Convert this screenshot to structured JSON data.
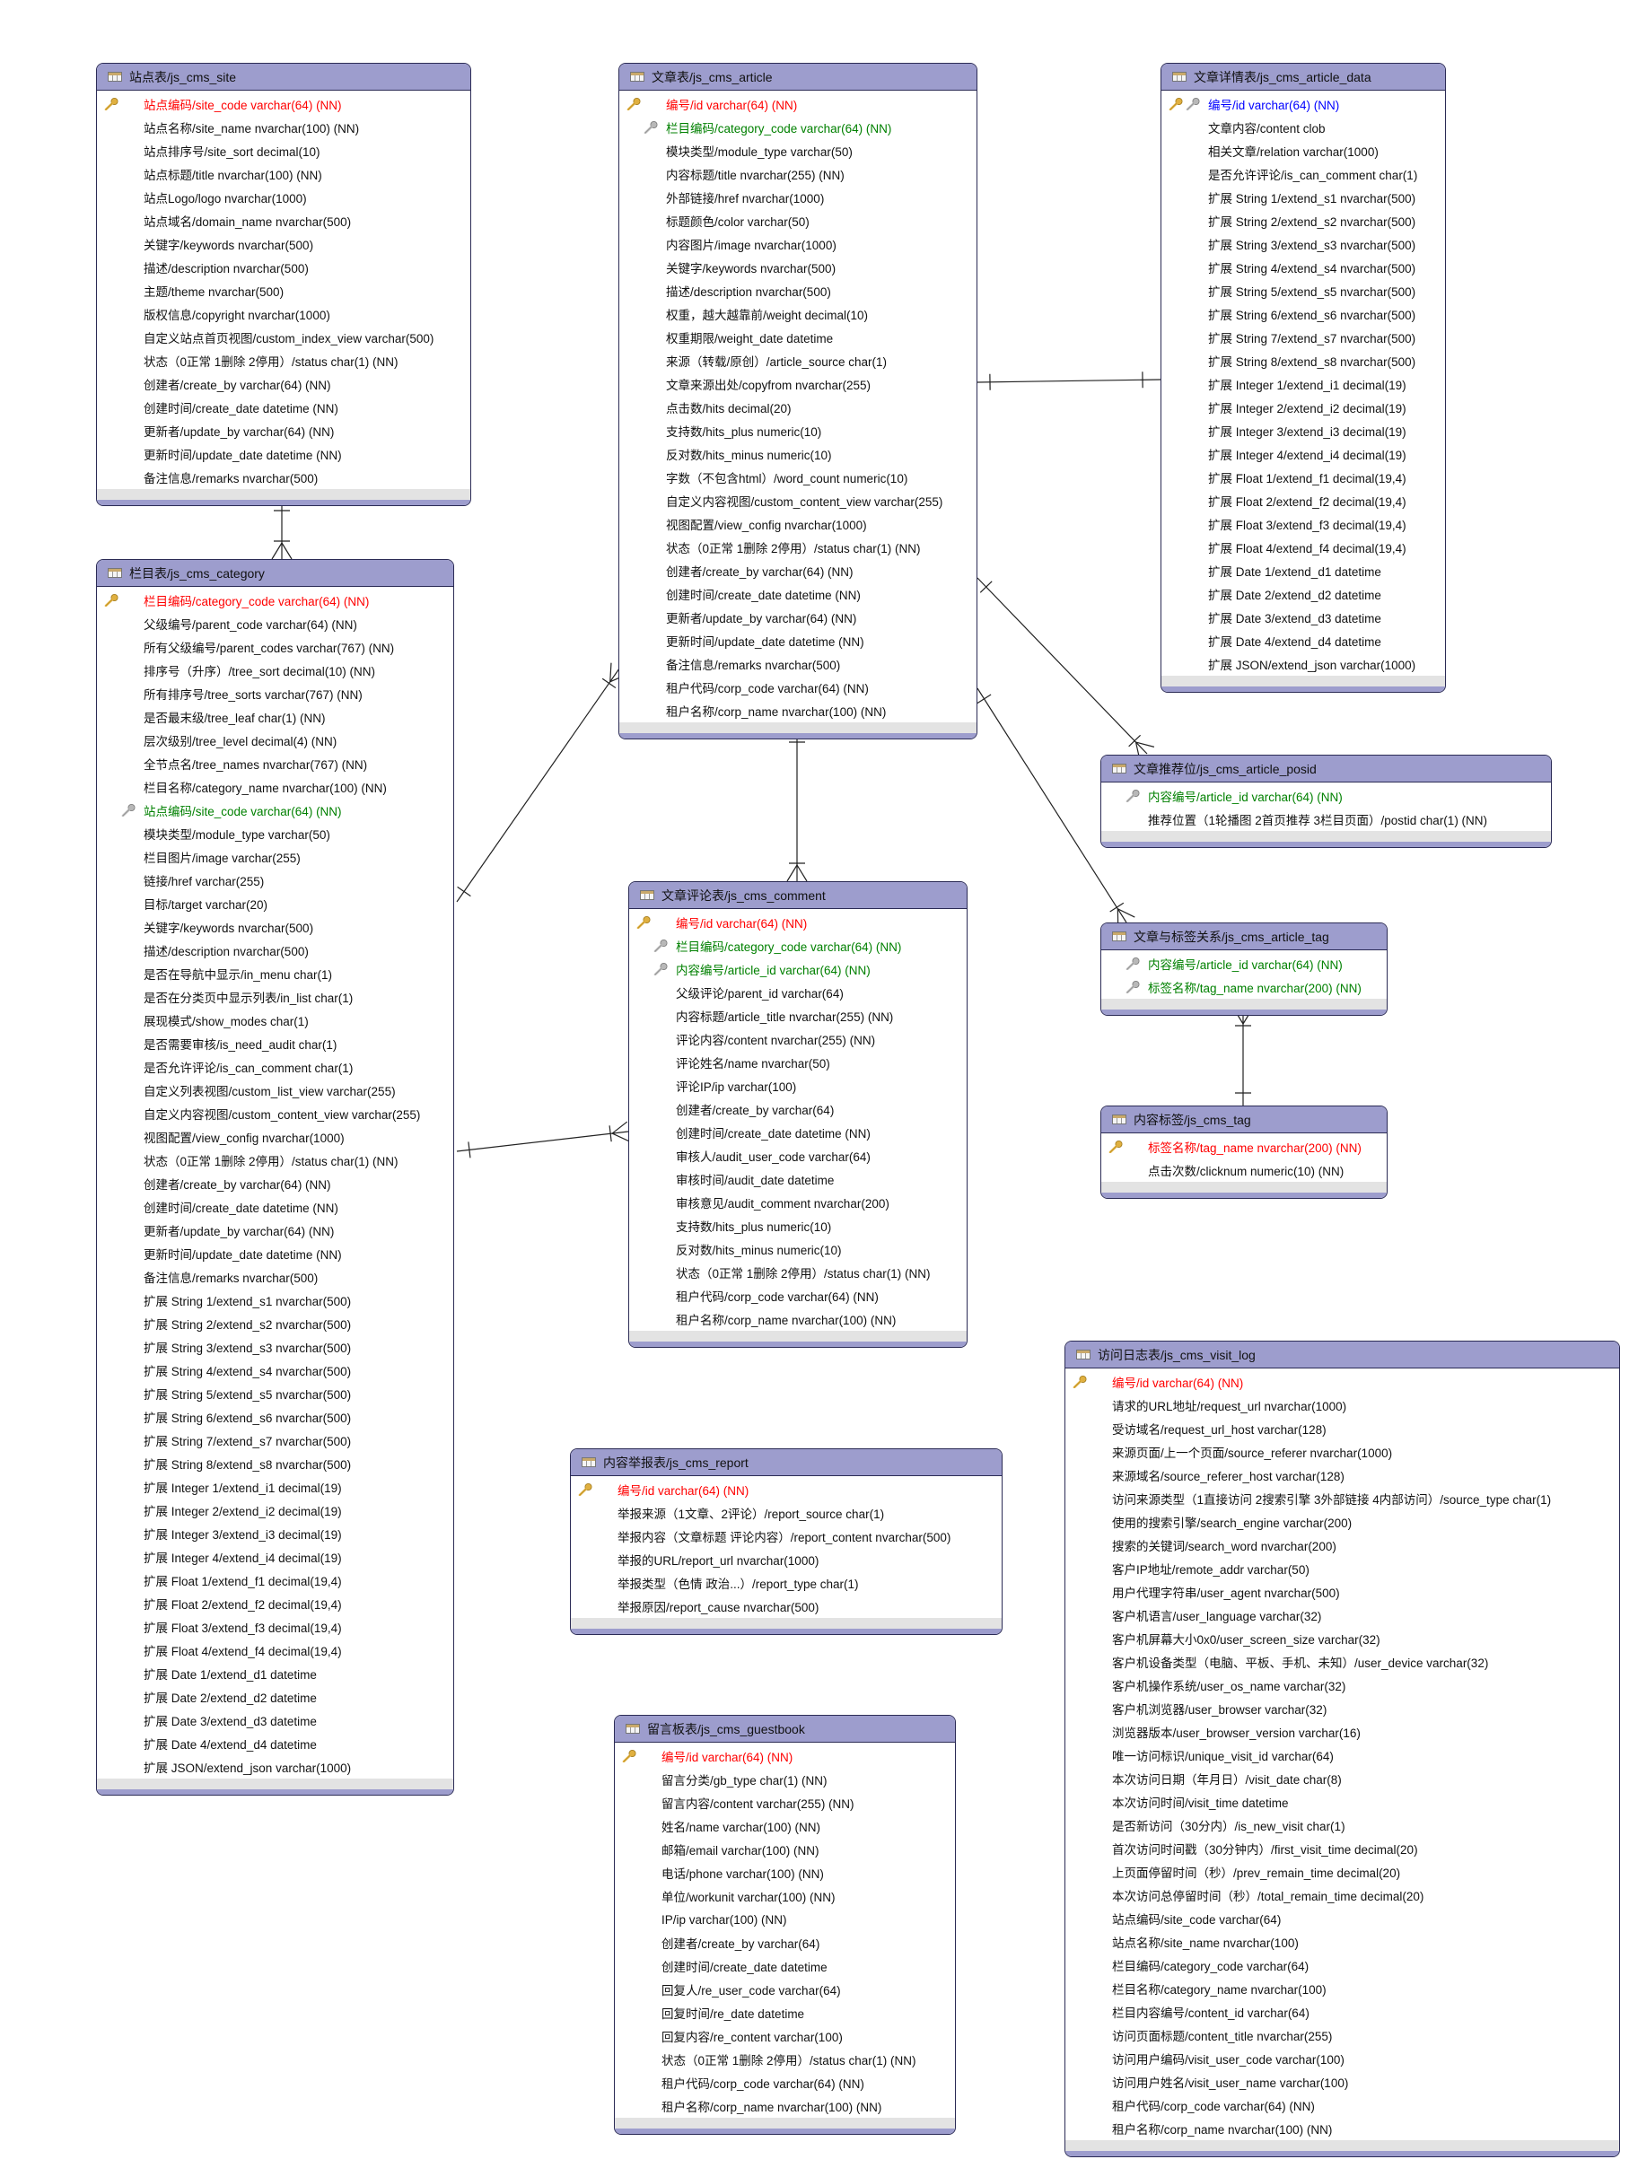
{
  "colors": {
    "header": "#9d9dcd",
    "primary_key": "#ff0000",
    "foreign_key": "#008000",
    "primary_foreign_key": "#0000ff",
    "text": "#111111"
  },
  "tables": [
    {
      "id": "site",
      "title": "站点表/js_cms_site",
      "fields": [
        {
          "text": "站点编码/site_code varchar(64) (NN)",
          "kind": "pk"
        },
        {
          "text": "站点名称/site_name nvarchar(100) (NN)"
        },
        {
          "text": "站点排序号/site_sort decimal(10)"
        },
        {
          "text": "站点标题/title nvarchar(100) (NN)"
        },
        {
          "text": "站点Logo/logo nvarchar(1000)"
        },
        {
          "text": "站点域名/domain_name nvarchar(500)"
        },
        {
          "text": "关键字/keywords nvarchar(500)"
        },
        {
          "text": "描述/description nvarchar(500)"
        },
        {
          "text": "主题/theme nvarchar(500)"
        },
        {
          "text": "版权信息/copyright nvarchar(1000)"
        },
        {
          "text": "自定义站点首页视图/custom_index_view varchar(500)"
        },
        {
          "text": "状态（0正常 1删除 2停用）/status char(1) (NN)"
        },
        {
          "text": "创建者/create_by varchar(64) (NN)"
        },
        {
          "text": "创建时间/create_date datetime (NN)"
        },
        {
          "text": "更新者/update_by varchar(64) (NN)"
        },
        {
          "text": "更新时间/update_date datetime (NN)"
        },
        {
          "text": "备注信息/remarks nvarchar(500)"
        }
      ]
    },
    {
      "id": "category",
      "title": "栏目表/js_cms_category",
      "fields": [
        {
          "text": "栏目编码/category_code varchar(64) (NN)",
          "kind": "pk"
        },
        {
          "text": "父级编号/parent_code varchar(64) (NN)"
        },
        {
          "text": "所有父级编号/parent_codes varchar(767) (NN)"
        },
        {
          "text": "排序号（升序）/tree_sort decimal(10) (NN)"
        },
        {
          "text": "所有排序号/tree_sorts varchar(767) (NN)"
        },
        {
          "text": "是否最末级/tree_leaf char(1) (NN)"
        },
        {
          "text": "层次级别/tree_level decimal(4) (NN)"
        },
        {
          "text": "全节点名/tree_names nvarchar(767) (NN)"
        },
        {
          "text": "栏目名称/category_name nvarchar(100) (NN)"
        },
        {
          "text": "站点编码/site_code varchar(64) (NN)",
          "kind": "fk"
        },
        {
          "text": "模块类型/module_type varchar(50)"
        },
        {
          "text": "栏目图片/image varchar(255)"
        },
        {
          "text": "链接/href varchar(255)"
        },
        {
          "text": "目标/target varchar(20)"
        },
        {
          "text": "关键字/keywords nvarchar(500)"
        },
        {
          "text": "描述/description nvarchar(500)"
        },
        {
          "text": "是否在导航中显示/in_menu char(1)"
        },
        {
          "text": "是否在分类页中显示列表/in_list char(1)"
        },
        {
          "text": "展现模式/show_modes char(1)"
        },
        {
          "text": "是否需要审核/is_need_audit char(1)"
        },
        {
          "text": "是否允许评论/is_can_comment char(1)"
        },
        {
          "text": "自定义列表视图/custom_list_view varchar(255)"
        },
        {
          "text": "自定义内容视图/custom_content_view varchar(255)"
        },
        {
          "text": "视图配置/view_config nvarchar(1000)"
        },
        {
          "text": "状态（0正常 1删除 2停用）/status char(1) (NN)"
        },
        {
          "text": "创建者/create_by varchar(64) (NN)"
        },
        {
          "text": "创建时间/create_date datetime (NN)"
        },
        {
          "text": "更新者/update_by varchar(64) (NN)"
        },
        {
          "text": "更新时间/update_date datetime (NN)"
        },
        {
          "text": "备注信息/remarks nvarchar(500)"
        },
        {
          "text": "扩展 String 1/extend_s1 nvarchar(500)"
        },
        {
          "text": "扩展 String 2/extend_s2 nvarchar(500)"
        },
        {
          "text": "扩展 String 3/extend_s3 nvarchar(500)"
        },
        {
          "text": "扩展 String 4/extend_s4 nvarchar(500)"
        },
        {
          "text": "扩展 String 5/extend_s5 nvarchar(500)"
        },
        {
          "text": "扩展 String 6/extend_s6 nvarchar(500)"
        },
        {
          "text": "扩展 String 7/extend_s7 nvarchar(500)"
        },
        {
          "text": "扩展 String 8/extend_s8 nvarchar(500)"
        },
        {
          "text": "扩展 Integer 1/extend_i1 decimal(19)"
        },
        {
          "text": "扩展 Integer 2/extend_i2 decimal(19)"
        },
        {
          "text": "扩展 Integer 3/extend_i3 decimal(19)"
        },
        {
          "text": "扩展 Integer 4/extend_i4 decimal(19)"
        },
        {
          "text": "扩展 Float 1/extend_f1 decimal(19,4)"
        },
        {
          "text": "扩展 Float 2/extend_f2 decimal(19,4)"
        },
        {
          "text": "扩展 Float 3/extend_f3 decimal(19,4)"
        },
        {
          "text": "扩展 Float 4/extend_f4 decimal(19,4)"
        },
        {
          "text": "扩展 Date 1/extend_d1 datetime"
        },
        {
          "text": "扩展 Date 2/extend_d2 datetime"
        },
        {
          "text": "扩展 Date 3/extend_d3 datetime"
        },
        {
          "text": "扩展 Date 4/extend_d4 datetime"
        },
        {
          "text": "扩展 JSON/extend_json varchar(1000)"
        }
      ]
    },
    {
      "id": "article",
      "title": "文章表/js_cms_article",
      "fields": [
        {
          "text": "编号/id varchar(64) (NN)",
          "kind": "pk"
        },
        {
          "text": "栏目编码/category_code varchar(64) (NN)",
          "kind": "fk"
        },
        {
          "text": "模块类型/module_type varchar(50)"
        },
        {
          "text": "内容标题/title nvarchar(255) (NN)"
        },
        {
          "text": "外部链接/href nvarchar(1000)"
        },
        {
          "text": "标题颜色/color varchar(50)"
        },
        {
          "text": "内容图片/image nvarchar(1000)"
        },
        {
          "text": "关键字/keywords nvarchar(500)"
        },
        {
          "text": "描述/description nvarchar(500)"
        },
        {
          "text": "权重，越大越靠前/weight decimal(10)"
        },
        {
          "text": "权重期限/weight_date datetime"
        },
        {
          "text": "来源（转载/原创）/article_source char(1)"
        },
        {
          "text": "文章来源出处/copyfrom nvarchar(255)"
        },
        {
          "text": "点击数/hits decimal(20)"
        },
        {
          "text": "支持数/hits_plus numeric(10)"
        },
        {
          "text": "反对数/hits_minus numeric(10)"
        },
        {
          "text": "字数（不包含html）/word_count numeric(10)"
        },
        {
          "text": "自定义内容视图/custom_content_view varchar(255)"
        },
        {
          "text": "视图配置/view_config nvarchar(1000)"
        },
        {
          "text": "状态（0正常 1删除 2停用）/status char(1) (NN)"
        },
        {
          "text": "创建者/create_by varchar(64) (NN)"
        },
        {
          "text": "创建时间/create_date datetime (NN)"
        },
        {
          "text": "更新者/update_by varchar(64) (NN)"
        },
        {
          "text": "更新时间/update_date datetime (NN)"
        },
        {
          "text": "备注信息/remarks nvarchar(500)"
        },
        {
          "text": "租户代码/corp_code varchar(64) (NN)"
        },
        {
          "text": "租户名称/corp_name nvarchar(100) (NN)"
        }
      ]
    },
    {
      "id": "article_data",
      "title": "文章详情表/js_cms_article_data",
      "fields": [
        {
          "text": "编号/id varchar(64) (NN)",
          "kind": "pkfk"
        },
        {
          "text": "文章内容/content clob"
        },
        {
          "text": "相关文章/relation varchar(1000)"
        },
        {
          "text": "是否允许评论/is_can_comment char(1)"
        },
        {
          "text": "扩展 String 1/extend_s1 nvarchar(500)"
        },
        {
          "text": "扩展 String 2/extend_s2 nvarchar(500)"
        },
        {
          "text": "扩展 String 3/extend_s3 nvarchar(500)"
        },
        {
          "text": "扩展 String 4/extend_s4 nvarchar(500)"
        },
        {
          "text": "扩展 String 5/extend_s5 nvarchar(500)"
        },
        {
          "text": "扩展 String 6/extend_s6 nvarchar(500)"
        },
        {
          "text": "扩展 String 7/extend_s7 nvarchar(500)"
        },
        {
          "text": "扩展 String 8/extend_s8 nvarchar(500)"
        },
        {
          "text": "扩展 Integer 1/extend_i1 decimal(19)"
        },
        {
          "text": "扩展 Integer 2/extend_i2 decimal(19)"
        },
        {
          "text": "扩展 Integer 3/extend_i3 decimal(19)"
        },
        {
          "text": "扩展 Integer 4/extend_i4 decimal(19)"
        },
        {
          "text": "扩展 Float 1/extend_f1 decimal(19,4)"
        },
        {
          "text": "扩展 Float 2/extend_f2 decimal(19,4)"
        },
        {
          "text": "扩展 Float 3/extend_f3 decimal(19,4)"
        },
        {
          "text": "扩展 Float 4/extend_f4 decimal(19,4)"
        },
        {
          "text": "扩展 Date 1/extend_d1 datetime"
        },
        {
          "text": "扩展 Date 2/extend_d2 datetime"
        },
        {
          "text": "扩展 Date 3/extend_d3 datetime"
        },
        {
          "text": "扩展 Date 4/extend_d4 datetime"
        },
        {
          "text": "扩展 JSON/extend_json varchar(1000)"
        }
      ]
    },
    {
      "id": "posid",
      "title": "文章推荐位/js_cms_article_posid",
      "fields": [
        {
          "text": "内容编号/article_id varchar(64) (NN)",
          "kind": "fk"
        },
        {
          "text": "推荐位置（1轮播图 2首页推荐 3栏目页面）/postid char(1) (NN)"
        }
      ]
    },
    {
      "id": "article_tag",
      "title": "文章与标签关系/js_cms_article_tag",
      "fields": [
        {
          "text": "内容编号/article_id varchar(64) (NN)",
          "kind": "fk"
        },
        {
          "text": "标签名称/tag_name nvarchar(200) (NN)",
          "kind": "fk"
        }
      ]
    },
    {
      "id": "tag",
      "title": "内容标签/js_cms_tag",
      "fields": [
        {
          "text": "标签名称/tag_name nvarchar(200) (NN)",
          "kind": "pk"
        },
        {
          "text": "点击次数/clicknum numeric(10) (NN)"
        }
      ]
    },
    {
      "id": "comment",
      "title": "文章评论表/js_cms_comment",
      "fields": [
        {
          "text": "编号/id varchar(64) (NN)",
          "kind": "pk"
        },
        {
          "text": "栏目编码/category_code varchar(64) (NN)",
          "kind": "fk"
        },
        {
          "text": "内容编号/article_id varchar(64) (NN)",
          "kind": "fk"
        },
        {
          "text": "父级评论/parent_id varchar(64)"
        },
        {
          "text": "内容标题/article_title nvarchar(255) (NN)"
        },
        {
          "text": "评论内容/content nvarchar(255) (NN)"
        },
        {
          "text": "评论姓名/name nvarchar(50)"
        },
        {
          "text": "评论IP/ip varchar(100)"
        },
        {
          "text": "创建者/create_by varchar(64)"
        },
        {
          "text": "创建时间/create_date datetime (NN)"
        },
        {
          "text": "审核人/audit_user_code varchar(64)"
        },
        {
          "text": "审核时间/audit_date datetime"
        },
        {
          "text": "审核意见/audit_comment nvarchar(200)"
        },
        {
          "text": "支持数/hits_plus numeric(10)"
        },
        {
          "text": "反对数/hits_minus numeric(10)"
        },
        {
          "text": "状态（0正常 1删除 2停用）/status char(1) (NN)"
        },
        {
          "text": "租户代码/corp_code varchar(64) (NN)"
        },
        {
          "text": "租户名称/corp_name nvarchar(100) (NN)"
        }
      ]
    },
    {
      "id": "report",
      "title": "内容举报表/js_cms_report",
      "fields": [
        {
          "text": "编号/id varchar(64) (NN)",
          "kind": "pk"
        },
        {
          "text": "举报来源（1文章、2评论）/report_source char(1)"
        },
        {
          "text": "举报内容（文章标题 评论内容）/report_content nvarchar(500)"
        },
        {
          "text": "举报的URL/report_url nvarchar(1000)"
        },
        {
          "text": "举报类型（色情 政治...）/report_type char(1)"
        },
        {
          "text": "举报原因/report_cause nvarchar(500)"
        }
      ]
    },
    {
      "id": "guestbook",
      "title": "留言板表/js_cms_guestbook",
      "fields": [
        {
          "text": "编号/id varchar(64) (NN)",
          "kind": "pk"
        },
        {
          "text": "留言分类/gb_type char(1) (NN)"
        },
        {
          "text": "留言内容/content varchar(255) (NN)"
        },
        {
          "text": "姓名/name varchar(100) (NN)"
        },
        {
          "text": "邮箱/email varchar(100) (NN)"
        },
        {
          "text": "电话/phone varchar(100) (NN)"
        },
        {
          "text": "单位/workunit varchar(100) (NN)"
        },
        {
          "text": "IP/ip varchar(100) (NN)"
        },
        {
          "text": "创建者/create_by varchar(64)"
        },
        {
          "text": "创建时间/create_date datetime"
        },
        {
          "text": "回复人/re_user_code varchar(64)"
        },
        {
          "text": "回复时间/re_date datetime"
        },
        {
          "text": "回复内容/re_content varchar(100)"
        },
        {
          "text": "状态（0正常 1删除 2停用）/status char(1) (NN)"
        },
        {
          "text": "租户代码/corp_code varchar(64) (NN)"
        },
        {
          "text": "租户名称/corp_name nvarchar(100) (NN)"
        }
      ]
    },
    {
      "id": "visit_log",
      "title": "访问日志表/js_cms_visit_log",
      "fields": [
        {
          "text": "编号/id varchar(64) (NN)",
          "kind": "pk"
        },
        {
          "text": "请求的URL地址/request_url nvarchar(1000)"
        },
        {
          "text": "受访域名/request_url_host varchar(128)"
        },
        {
          "text": "来源页面/上一个页面/source_referer nvarchar(1000)"
        },
        {
          "text": "来源域名/source_referer_host varchar(128)"
        },
        {
          "text": "访问来源类型（1直接访问 2搜索引擎 3外部链接 4内部访问）/source_type char(1)"
        },
        {
          "text": "使用的搜索引擎/search_engine varchar(200)"
        },
        {
          "text": "搜索的关键词/search_word nvarchar(200)"
        },
        {
          "text": "客户IP地址/remote_addr varchar(50)"
        },
        {
          "text": "用户代理字符串/user_agent nvarchar(500)"
        },
        {
          "text": "客户机语言/user_language varchar(32)"
        },
        {
          "text": "客户机屏幕大小0x0/user_screen_size varchar(32)"
        },
        {
          "text": "客户机设备类型（电脑、平板、手机、未知）/user_device varchar(32)"
        },
        {
          "text": "客户机操作系统/user_os_name varchar(32)"
        },
        {
          "text": "客户机浏览器/user_browser varchar(32)"
        },
        {
          "text": "浏览器版本/user_browser_version varchar(16)"
        },
        {
          "text": "唯一访问标识/unique_visit_id varchar(64)"
        },
        {
          "text": "本次访问日期（年月日）/visit_date char(8)"
        },
        {
          "text": "本次访问时间/visit_time datetime"
        },
        {
          "text": "是否新访问（30分内）/is_new_visit char(1)"
        },
        {
          "text": "首次访问时间戳（30分钟内）/first_visit_time decimal(20)"
        },
        {
          "text": "上页面停留时间（秒）/prev_remain_time decimal(20)"
        },
        {
          "text": "本次访问总停留时间（秒）/total_remain_time decimal(20)"
        },
        {
          "text": "站点编码/site_code varchar(64)"
        },
        {
          "text": "站点名称/site_name nvarchar(100)"
        },
        {
          "text": "栏目编码/category_code varchar(64)"
        },
        {
          "text": "栏目名称/category_name nvarchar(100)"
        },
        {
          "text": "栏目内容编号/content_id varchar(64)"
        },
        {
          "text": "访问页面标题/content_title nvarchar(255)"
        },
        {
          "text": "访问用户编码/visit_user_code varchar(100)"
        },
        {
          "text": "访问用户姓名/visit_user_name varchar(100)"
        },
        {
          "text": "租户代码/corp_code varchar(64) (NN)"
        },
        {
          "text": "租户名称/corp_name nvarchar(100) (NN)"
        }
      ]
    }
  ],
  "relationships": [
    {
      "from": "site",
      "to": "category",
      "type": "one-to-many"
    },
    {
      "from": "category",
      "to": "article",
      "type": "one-to-many"
    },
    {
      "from": "category",
      "to": "comment",
      "type": "one-to-many"
    },
    {
      "from": "article",
      "to": "comment",
      "type": "one-to-many"
    },
    {
      "from": "article",
      "to": "article_data",
      "type": "one-to-one"
    },
    {
      "from": "article",
      "to": "posid",
      "type": "one-to-many"
    },
    {
      "from": "article",
      "to": "article_tag",
      "type": "one-to-many"
    },
    {
      "from": "tag",
      "to": "article_tag",
      "type": "one-to-many"
    }
  ]
}
